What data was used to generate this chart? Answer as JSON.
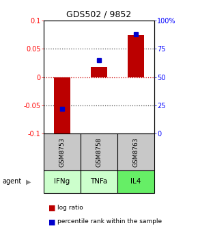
{
  "title": "GDS502 / 9852",
  "samples": [
    "GSM8753",
    "GSM8758",
    "GSM8763"
  ],
  "agents": [
    "IFNg",
    "TNFa",
    "IL4"
  ],
  "log_ratios": [
    -0.108,
    0.018,
    0.075
  ],
  "percentile_ranks": [
    22,
    65,
    88
  ],
  "ylim_left": [
    -0.1,
    0.1
  ],
  "ylim_right": [
    0,
    100
  ],
  "right_ticks": [
    0,
    25,
    50,
    75,
    100
  ],
  "right_tick_labels": [
    "0",
    "25",
    "50",
    "75",
    "100%"
  ],
  "left_ticks": [
    -0.1,
    -0.05,
    0.0,
    0.05,
    0.1
  ],
  "left_tick_labels": [
    "-0.1",
    "-0.05",
    "0",
    "0.05",
    "0.1"
  ],
  "bar_color": "#bb0000",
  "dot_color": "#0000cc",
  "agent_colors": [
    "#ccffcc",
    "#ccffcc",
    "#66ee66"
  ],
  "sample_bg": "#c8c8c8",
  "legend_labels": [
    "log ratio",
    "percentile rank within the sample"
  ]
}
